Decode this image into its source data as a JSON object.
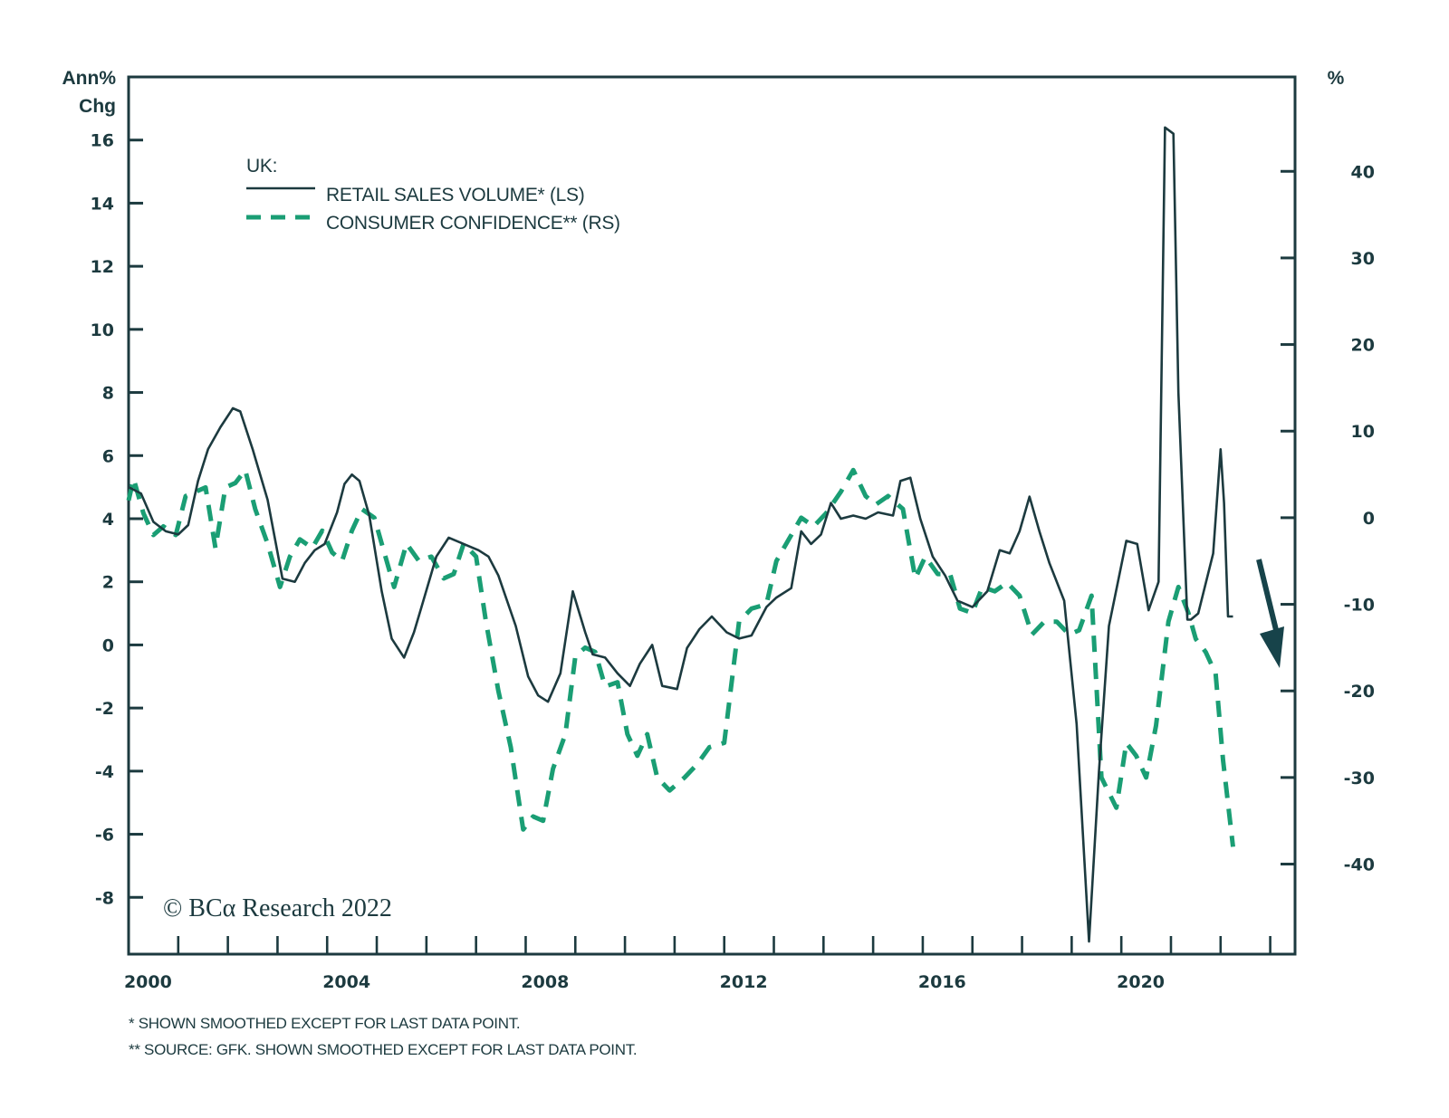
{
  "chart_data": {
    "type": "line",
    "title": "",
    "legend": {
      "heading": "UK:",
      "placement": "top-left",
      "entries": [
        {
          "label": "RETAIL SALES VOLUME* (LS)",
          "style": "solid",
          "color": "#1c3a3f"
        },
        {
          "label": "CONSUMER CONFIDENCE** (RS)",
          "style": "dashed",
          "color": "#1a9e74"
        }
      ]
    },
    "left_axis": {
      "label_line1": "Ann%",
      "label_line2": "Chg",
      "ylim": [
        -9.8,
        18.0
      ],
      "ticks": [
        16,
        14,
        12,
        10,
        8,
        6,
        4,
        2,
        0,
        -2,
        -4,
        -6,
        -8
      ],
      "tick_labels": [
        "16",
        "14",
        "12",
        "10",
        "8",
        "6",
        "4",
        "2",
        "0",
        "-2",
        "-4",
        "-6",
        "-8"
      ]
    },
    "right_axis": {
      "label": "%",
      "ylim": [
        -50.4,
        50.9
      ],
      "ticks": [
        40,
        30,
        20,
        10,
        0,
        -10,
        -20,
        -30,
        -40
      ],
      "tick_labels": [
        "40",
        "30",
        "20",
        "10",
        "0",
        "-10",
        "-20",
        "-30",
        "-40"
      ]
    },
    "x_axis": {
      "xlim": [
        2000,
        2023.5
      ],
      "year_ticks": [
        2001,
        2002,
        2003,
        2004,
        2005,
        2006,
        2007,
        2008,
        2009,
        2010,
        2011,
        2012,
        2013,
        2014,
        2015,
        2016,
        2017,
        2018,
        2019,
        2020,
        2021,
        2022,
        2023
      ],
      "labels": [
        "2000",
        "2004",
        "2008",
        "2012",
        "2016",
        "2020"
      ],
      "label_years": [
        2000,
        2004,
        2008,
        2012,
        2016,
        2020
      ]
    },
    "grid": false,
    "series": [
      {
        "name": "RETAIL SALES VOLUME* (LS)",
        "axis": "left",
        "style": "solid",
        "color": "#1c3a3f",
        "x": [
          2000.0,
          2000.25,
          2000.5,
          2000.75,
          2001.0,
          2001.2,
          2001.4,
          2001.6,
          2001.85,
          2002.1,
          2002.25,
          2002.5,
          2002.8,
          2003.1,
          2003.35,
          2003.55,
          2003.75,
          2003.95,
          2004.2,
          2004.35,
          2004.5,
          2004.65,
          2004.85,
          2005.1,
          2005.3,
          2005.55,
          2005.75,
          2005.9,
          2006.2,
          2006.45,
          2006.75,
          2007.05,
          2007.25,
          2007.45,
          2007.8,
          2008.05,
          2008.25,
          2008.45,
          2008.7,
          2008.95,
          2009.2,
          2009.35,
          2009.6,
          2009.85,
          2010.1,
          2010.3,
          2010.55,
          2010.75,
          2011.05,
          2011.25,
          2011.5,
          2011.75,
          2012.05,
          2012.3,
          2012.55,
          2012.85,
          2013.05,
          2013.35,
          2013.55,
          2013.75,
          2013.95,
          2014.15,
          2014.35,
          2014.6,
          2014.85,
          2015.1,
          2015.4,
          2015.55,
          2015.75,
          2015.95,
          2016.2,
          2016.45,
          2016.7,
          2017.0,
          2017.3,
          2017.55,
          2017.75,
          2017.95,
          2018.15,
          2018.35,
          2018.55,
          2018.85,
          2019.1,
          2019.35,
          2019.55,
          2019.75,
          2020.1,
          2020.32,
          2020.55,
          2020.75,
          2020.88,
          2021.05,
          2021.15,
          2021.33,
          2021.4,
          2021.55,
          2021.85,
          2022.0,
          2022.07,
          2022.15,
          2022.25
        ],
        "values": [
          5.0,
          4.8,
          3.9,
          3.6,
          3.5,
          3.8,
          5.2,
          6.2,
          6.9,
          7.5,
          7.4,
          6.2,
          4.6,
          2.1,
          2.0,
          2.6,
          3.0,
          3.2,
          4.2,
          5.1,
          5.4,
          5.2,
          4.1,
          1.7,
          0.2,
          -0.4,
          0.4,
          1.2,
          2.8,
          3.4,
          3.2,
          3.0,
          2.8,
          2.2,
          0.6,
          -1.0,
          -1.6,
          -1.8,
          -0.9,
          1.7,
          0.4,
          -0.3,
          -0.4,
          -0.9,
          -1.3,
          -0.6,
          0.0,
          -1.3,
          -1.4,
          -0.1,
          0.5,
          0.9,
          0.4,
          0.2,
          0.3,
          1.2,
          1.5,
          1.8,
          3.6,
          3.2,
          3.5,
          4.5,
          4.0,
          4.1,
          4.0,
          4.2,
          4.1,
          5.2,
          5.3,
          4.0,
          2.8,
          2.2,
          1.4,
          1.2,
          1.7,
          3.0,
          2.9,
          3.6,
          4.7,
          3.6,
          2.6,
          1.4,
          -2.5,
          -9.4,
          -4.0,
          0.6,
          3.3,
          3.2,
          1.1,
          2.0,
          16.4,
          16.2,
          8.0,
          0.8,
          0.8,
          1.0,
          2.9,
          6.2,
          4.5,
          0.9,
          0.9
        ],
        "last_point_note": "Shown smoothed except for last data point"
      },
      {
        "name": "CONSUMER CONFIDENCE** (RS)",
        "axis": "right",
        "style": "dashed",
        "color": "#1a9e74",
        "x": [
          2000.0,
          2000.1,
          2000.3,
          2000.5,
          2000.7,
          2000.95,
          2001.15,
          2001.35,
          2001.55,
          2001.75,
          2001.95,
          2002.15,
          2002.35,
          2002.55,
          2002.8,
          2003.05,
          2003.25,
          2003.45,
          2003.7,
          2003.9,
          2004.1,
          2004.3,
          2004.5,
          2004.7,
          2004.95,
          2005.1,
          2005.35,
          2005.6,
          2005.85,
          2006.1,
          2006.35,
          2006.55,
          2006.75,
          2007.0,
          2007.2,
          2007.45,
          2007.7,
          2007.95,
          2008.15,
          2008.35,
          2008.55,
          2008.8,
          2009.0,
          2009.2,
          2009.4,
          2009.6,
          2009.85,
          2010.05,
          2010.25,
          2010.45,
          2010.65,
          2010.9,
          2011.2,
          2011.45,
          2011.7,
          2012.0,
          2012.3,
          2012.55,
          2012.85,
          2013.05,
          2013.3,
          2013.55,
          2013.8,
          2014.05,
          2014.35,
          2014.6,
          2014.85,
          2015.05,
          2015.3,
          2015.6,
          2015.85,
          2016.05,
          2016.3,
          2016.55,
          2016.75,
          2017.0,
          2017.2,
          2017.45,
          2017.7,
          2017.95,
          2018.2,
          2018.45,
          2018.7,
          2018.95,
          2019.15,
          2019.4,
          2019.6,
          2019.9,
          2020.1,
          2020.3,
          2020.5,
          2020.7,
          2020.95,
          2021.15,
          2021.35,
          2021.5,
          2021.7,
          2021.9,
          2022.05,
          2022.25
        ],
        "values": [
          2.0,
          4.5,
          0.5,
          -2.0,
          -1.0,
          -2.0,
          2.5,
          3.0,
          3.5,
          -3.5,
          3.5,
          4.0,
          5.5,
          1.0,
          -3.0,
          -8.0,
          -4.5,
          -2.5,
          -3.5,
          -1.5,
          -4.0,
          -5.0,
          -1.5,
          1.0,
          0.0,
          -3.0,
          -8.0,
          -3.0,
          -5.0,
          -4.5,
          -7.0,
          -6.5,
          -3.0,
          -4.5,
          -12.0,
          -20.0,
          -26.5,
          -36.0,
          -34.5,
          -35.0,
          -29.0,
          -25.0,
          -16.0,
          -15.0,
          -15.5,
          -19.5,
          -19.0,
          -25.0,
          -27.5,
          -25.0,
          -30.0,
          -31.5,
          -30.0,
          -28.5,
          -26.5,
          -26.0,
          -12.0,
          -10.5,
          -10.0,
          -5.0,
          -2.5,
          0.0,
          -1.0,
          0.5,
          3.0,
          5.5,
          2.5,
          1.5,
          2.5,
          1.0,
          -7.0,
          -4.5,
          -6.5,
          -6.5,
          -10.5,
          -11.0,
          -8.0,
          -8.5,
          -7.5,
          -9.0,
          -13.5,
          -12.0,
          -12.0,
          -13.5,
          -13.0,
          -9.0,
          -30.0,
          -33.5,
          -26.0,
          -27.5,
          -30.0,
          -24.0,
          -12.0,
          -8.0,
          -11.0,
          -14.0,
          -15.5,
          -18.0,
          -28.0,
          -38.0
        ],
        "last_point_note": "Shown smoothed except for last data point"
      }
    ],
    "annotations": [
      {
        "type": "arrow",
        "direction": "down",
        "meaning": "expected decline",
        "color": "#17434a"
      }
    ],
    "source_watermark": "© BCα Research 2022",
    "footnotes": [
      "*  SHOWN SMOOTHED EXCEPT FOR LAST DATA POINT.",
      "** SOURCE: GFK. SHOWN SMOOTHED EXCEPT FOR LAST DATA POINT."
    ]
  }
}
